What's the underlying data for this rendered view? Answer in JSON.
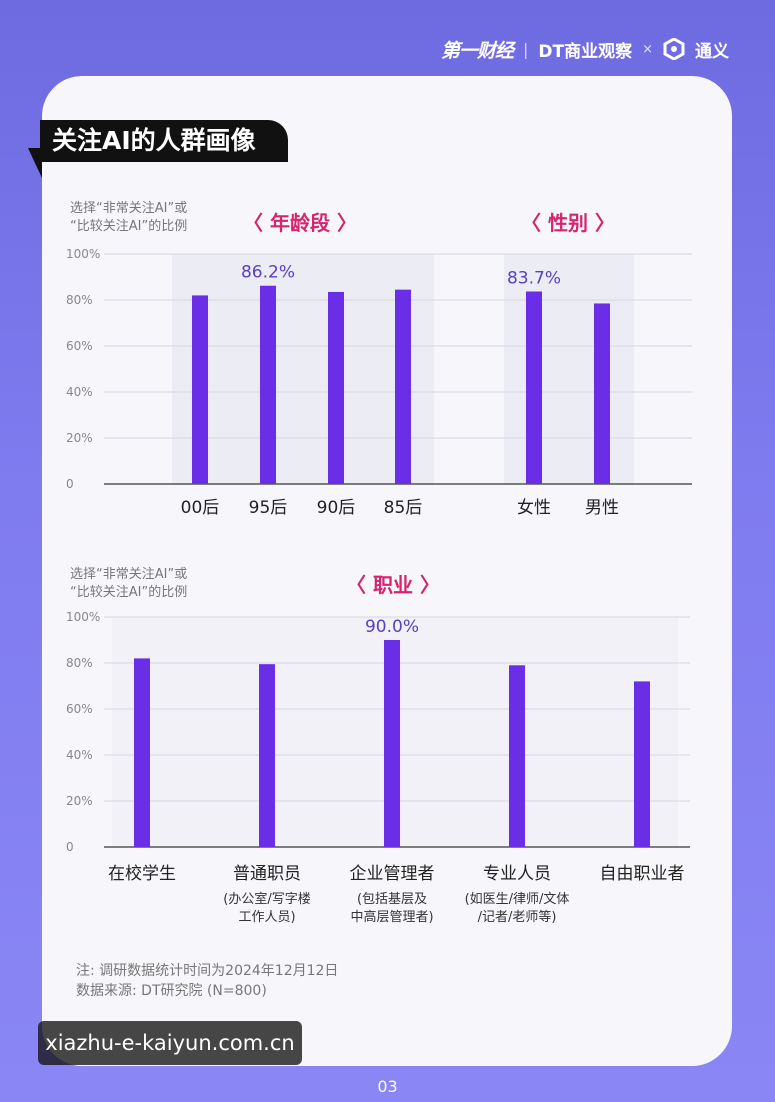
{
  "header": {
    "brand1": "第一财经",
    "brand2": "DT商业观察",
    "brand_separator": "|",
    "times": "×",
    "brand3": "通义"
  },
  "section_title": "关注AI的人群画像",
  "axis_note_line1": "选择“非常关注AI”或",
  "axis_note_line2": "“比较关注AI”的比例",
  "colors": {
    "bar": "#6a2ee6",
    "value_label": "#5a3fc0",
    "group_title": "#d6246e",
    "bg_band": "#ececf4"
  },
  "chart_data": [
    {
      "type": "bar",
      "title": "",
      "ylim": [
        0,
        100
      ],
      "yticks": [
        "100%",
        "80%",
        "60%",
        "40%",
        "20%",
        "0"
      ],
      "grid": true,
      "groups": [
        {
          "title": "〈 年龄段 〉",
          "categories": [
            "00后",
            "95后",
            "90后",
            "85后"
          ],
          "values": [
            82,
            86.2,
            83.5,
            84.5
          ],
          "labels": [
            "",
            "86.2%",
            "",
            ""
          ]
        },
        {
          "title": "〈 性别 〉",
          "categories": [
            "女性",
            "男性"
          ],
          "values": [
            83.7,
            78.5
          ],
          "labels": [
            "83.7%",
            ""
          ]
        }
      ]
    },
    {
      "type": "bar",
      "title": "〈 职业 〉",
      "ylim": [
        0,
        100
      ],
      "yticks": [
        "100%",
        "80%",
        "60%",
        "40%",
        "20%",
        "0"
      ],
      "grid": true,
      "categories": [
        "在校学生",
        "普通职员",
        "企业管理者",
        "专业人员",
        "自由职业者"
      ],
      "subtitles": [
        [],
        [
          "(办公室/写字楼",
          "工作人员)"
        ],
        [
          "(包括基层及",
          "中高层管理者)"
        ],
        [
          "(如医生/律师/文体",
          "/记者/老师等)"
        ],
        []
      ],
      "values": [
        82,
        79.5,
        90.0,
        79,
        72
      ],
      "labels": [
        "",
        "",
        "90.0%",
        "",
        ""
      ]
    }
  ],
  "footnote1": "注: 调研数据统计时间为2024年12月12日",
  "footnote2": "数据来源: DT研究院 (N=800)",
  "watermark": "xiazhu-e-kaiyun.com.cn",
  "page_number": "03"
}
